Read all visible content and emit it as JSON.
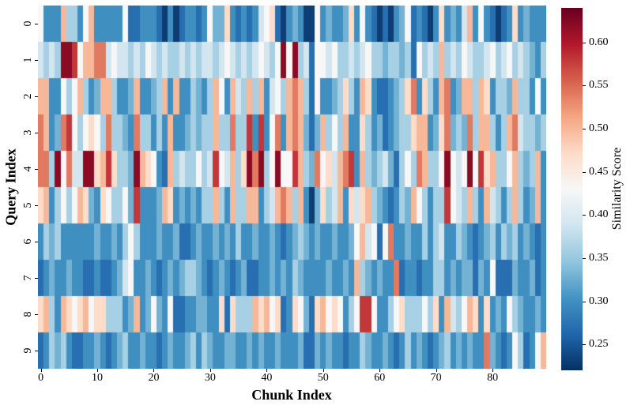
{
  "figure": {
    "background": "#ffffff",
    "x_ticks": [
      0,
      10,
      20,
      30,
      40,
      50,
      60,
      70,
      80
    ],
    "y_ticks": [
      0,
      1,
      2,
      3,
      4,
      5,
      6,
      7,
      8,
      9
    ],
    "colorbar_ticks": [
      0.6,
      0.55,
      0.5,
      0.45,
      0.4,
      0.35,
      0.3,
      0.25
    ]
  },
  "chart_data": {
    "type": "heatmap",
    "title": "",
    "xlabel": "Chunk Index",
    "ylabel": "Query Index",
    "colorbar_label": "Similarity Score",
    "n_rows": 10,
    "n_cols": 90,
    "vmin": 0.22,
    "vmax": 0.64,
    "colormap": "RdBu_r",
    "colormap_stops": [
      "#053061",
      "#2166ac",
      "#4393c3",
      "#92c5de",
      "#d1e5f0",
      "#f7f7f7",
      "#fddbc7",
      "#f4a582",
      "#d6604d",
      "#b2182b",
      "#67001f"
    ],
    "values": [
      [
        0.43,
        0.3,
        0.3,
        0.3,
        0.5,
        0.36,
        0.36,
        0.3,
        0.43,
        0.5,
        0.3,
        0.3,
        0.3,
        0.3,
        0.3,
        0.43,
        0.27,
        0.27,
        0.3,
        0.3,
        0.3,
        0.27,
        0.23,
        0.3,
        0.23,
        0.27,
        0.3,
        0.3,
        0.27,
        0.3,
        0.43,
        0.33,
        0.33,
        0.47,
        0.3,
        0.27,
        0.3,
        0.27,
        0.3,
        0.39,
        0.43,
        0.47,
        0.27,
        0.23,
        0.3,
        0.33,
        0.3,
        0.23,
        0.23,
        0.43,
        0.3,
        0.33,
        0.3,
        0.3,
        0.33,
        0.47,
        0.3,
        0.43,
        0.3,
        0.27,
        0.23,
        0.27,
        0.23,
        0.3,
        0.33,
        0.43,
        0.27,
        0.3,
        0.27,
        0.23,
        0.3,
        0.47,
        0.3,
        0.33,
        0.3,
        0.39,
        0.5,
        0.3,
        0.43,
        0.3,
        0.27,
        0.23,
        0.27,
        0.3,
        0.47,
        0.3,
        0.33,
        0.3,
        0.3,
        0.3
      ],
      [
        0.39,
        0.36,
        0.39,
        0.36,
        0.62,
        0.62,
        0.58,
        0.43,
        0.5,
        0.5,
        0.54,
        0.54,
        0.39,
        0.43,
        0.39,
        0.39,
        0.36,
        0.39,
        0.36,
        0.43,
        0.39,
        0.36,
        0.39,
        0.36,
        0.36,
        0.39,
        0.36,
        0.39,
        0.36,
        0.39,
        0.39,
        0.36,
        0.39,
        0.43,
        0.39,
        0.36,
        0.39,
        0.36,
        0.39,
        0.43,
        0.39,
        0.36,
        0.43,
        0.62,
        0.43,
        0.62,
        0.36,
        0.39,
        0.27,
        0.43,
        0.43,
        0.39,
        0.43,
        0.36,
        0.36,
        0.39,
        0.36,
        0.39,
        0.43,
        0.36,
        0.36,
        0.33,
        0.36,
        0.36,
        0.33,
        0.36,
        0.27,
        0.43,
        0.36,
        0.39,
        0.36,
        0.5,
        0.36,
        0.39,
        0.36,
        0.43,
        0.39,
        0.36,
        0.36,
        0.39,
        0.43,
        0.36,
        0.39,
        0.43,
        0.36,
        0.39,
        0.36,
        0.33,
        0.3,
        0.36
      ],
      [
        0.5,
        0.5,
        0.3,
        0.3,
        0.43,
        0.36,
        0.43,
        0.5,
        0.36,
        0.3,
        0.33,
        0.5,
        0.5,
        0.36,
        0.3,
        0.3,
        0.33,
        0.5,
        0.3,
        0.3,
        0.33,
        0.36,
        0.5,
        0.3,
        0.5,
        0.3,
        0.3,
        0.36,
        0.33,
        0.3,
        0.36,
        0.5,
        0.43,
        0.3,
        0.5,
        0.39,
        0.36,
        0.5,
        0.36,
        0.5,
        0.3,
        0.39,
        0.43,
        0.36,
        0.5,
        0.54,
        0.5,
        0.36,
        0.27,
        0.43,
        0.3,
        0.3,
        0.33,
        0.36,
        0.47,
        0.36,
        0.3,
        0.5,
        0.47,
        0.3,
        0.27,
        0.27,
        0.3,
        0.33,
        0.36,
        0.47,
        0.54,
        0.3,
        0.47,
        0.36,
        0.3,
        0.5,
        0.54,
        0.3,
        0.33,
        0.5,
        0.5,
        0.36,
        0.5,
        0.47,
        0.3,
        0.36,
        0.36,
        0.33,
        0.5,
        0.36,
        0.36,
        0.3,
        0.43,
        0.3
      ],
      [
        0.54,
        0.5,
        0.3,
        0.33,
        0.54,
        0.58,
        0.43,
        0.36,
        0.43,
        0.47,
        0.43,
        0.36,
        0.54,
        0.36,
        0.36,
        0.33,
        0.3,
        0.54,
        0.36,
        0.36,
        0.3,
        0.36,
        0.3,
        0.5,
        0.3,
        0.3,
        0.33,
        0.36,
        0.33,
        0.36,
        0.36,
        0.5,
        0.36,
        0.36,
        0.54,
        0.36,
        0.36,
        0.58,
        0.3,
        0.58,
        0.3,
        0.43,
        0.54,
        0.3,
        0.5,
        0.54,
        0.5,
        0.33,
        0.27,
        0.33,
        0.5,
        0.36,
        0.43,
        0.36,
        0.5,
        0.3,
        0.3,
        0.47,
        0.36,
        0.3,
        0.33,
        0.27,
        0.3,
        0.33,
        0.36,
        0.36,
        0.47,
        0.5,
        0.5,
        0.3,
        0.33,
        0.47,
        0.54,
        0.33,
        0.36,
        0.33,
        0.54,
        0.36,
        0.5,
        0.5,
        0.36,
        0.3,
        0.36,
        0.5,
        0.54,
        0.39,
        0.36,
        0.36,
        0.33,
        0.36
      ],
      [
        0.54,
        0.54,
        0.36,
        0.62,
        0.43,
        0.54,
        0.39,
        0.39,
        0.62,
        0.62,
        0.47,
        0.5,
        0.58,
        0.47,
        0.36,
        0.36,
        0.33,
        0.62,
        0.5,
        0.47,
        0.43,
        0.3,
        0.27,
        0.5,
        0.36,
        0.39,
        0.36,
        0.36,
        0.43,
        0.36,
        0.39,
        0.58,
        0.43,
        0.39,
        0.5,
        0.36,
        0.47,
        0.62,
        0.54,
        0.62,
        0.36,
        0.43,
        0.62,
        0.43,
        0.43,
        0.58,
        0.5,
        0.36,
        0.33,
        0.54,
        0.43,
        0.47,
        0.39,
        0.5,
        0.54,
        0.58,
        0.3,
        0.5,
        0.36,
        0.33,
        0.36,
        0.39,
        0.33,
        0.27,
        0.36,
        0.43,
        0.36,
        0.54,
        0.5,
        0.36,
        0.36,
        0.43,
        0.62,
        0.43,
        0.39,
        0.43,
        0.62,
        0.43,
        0.58,
        0.47,
        0.5,
        0.36,
        0.36,
        0.43,
        0.5,
        0.36,
        0.33,
        0.36,
        0.5,
        0.3
      ],
      [
        0.47,
        0.5,
        0.3,
        0.36,
        0.43,
        0.36,
        0.43,
        0.5,
        0.47,
        0.33,
        0.3,
        0.47,
        0.43,
        0.36,
        0.36,
        0.43,
        0.33,
        0.58,
        0.3,
        0.3,
        0.3,
        0.33,
        0.5,
        0.47,
        0.3,
        0.33,
        0.3,
        0.33,
        0.3,
        0.36,
        0.36,
        0.5,
        0.36,
        0.3,
        0.5,
        0.36,
        0.36,
        0.5,
        0.5,
        0.3,
        0.36,
        0.39,
        0.5,
        0.54,
        0.5,
        0.36,
        0.5,
        0.3,
        0.23,
        0.33,
        0.47,
        0.36,
        0.39,
        0.5,
        0.3,
        0.47,
        0.39,
        0.47,
        0.5,
        0.36,
        0.33,
        0.3,
        0.27,
        0.3,
        0.36,
        0.33,
        0.5,
        0.43,
        0.36,
        0.3,
        0.36,
        0.36,
        0.58,
        0.43,
        0.39,
        0.36,
        0.5,
        0.36,
        0.3,
        0.5,
        0.39,
        0.36,
        0.3,
        0.36,
        0.5,
        0.36,
        0.3,
        0.33,
        0.5,
        0.3
      ],
      [
        0.3,
        0.36,
        0.33,
        0.36,
        0.3,
        0.3,
        0.3,
        0.3,
        0.3,
        0.3,
        0.33,
        0.3,
        0.3,
        0.33,
        0.3,
        0.36,
        0.43,
        0.36,
        0.3,
        0.3,
        0.3,
        0.33,
        0.3,
        0.3,
        0.33,
        0.27,
        0.27,
        0.3,
        0.33,
        0.3,
        0.3,
        0.33,
        0.3,
        0.33,
        0.3,
        0.36,
        0.3,
        0.3,
        0.33,
        0.3,
        0.3,
        0.33,
        0.3,
        0.27,
        0.3,
        0.33,
        0.36,
        0.33,
        0.3,
        0.33,
        0.3,
        0.3,
        0.33,
        0.3,
        0.3,
        0.33,
        0.43,
        0.5,
        0.39,
        0.43,
        0.27,
        0.43,
        0.54,
        0.3,
        0.3,
        0.33,
        0.3,
        0.3,
        0.36,
        0.3,
        0.36,
        0.39,
        0.3,
        0.3,
        0.36,
        0.33,
        0.3,
        0.27,
        0.3,
        0.33,
        0.36,
        0.3,
        0.36,
        0.33,
        0.36,
        0.3,
        0.33,
        0.3,
        0.27,
        0.3
      ],
      [
        0.27,
        0.3,
        0.33,
        0.3,
        0.3,
        0.33,
        0.3,
        0.3,
        0.27,
        0.27,
        0.3,
        0.27,
        0.27,
        0.3,
        0.33,
        0.39,
        0.43,
        0.3,
        0.3,
        0.33,
        0.3,
        0.27,
        0.3,
        0.33,
        0.3,
        0.33,
        0.36,
        0.36,
        0.33,
        0.3,
        0.27,
        0.3,
        0.33,
        0.3,
        0.27,
        0.3,
        0.33,
        0.27,
        0.27,
        0.3,
        0.3,
        0.33,
        0.3,
        0.33,
        0.3,
        0.36,
        0.33,
        0.3,
        0.3,
        0.3,
        0.3,
        0.33,
        0.3,
        0.3,
        0.33,
        0.3,
        0.5,
        0.36,
        0.33,
        0.3,
        0.33,
        0.3,
        0.3,
        0.54,
        0.27,
        0.3,
        0.3,
        0.27,
        0.3,
        0.3,
        0.36,
        0.36,
        0.3,
        0.33,
        0.3,
        0.33,
        0.33,
        0.27,
        0.33,
        0.3,
        0.43,
        0.27,
        0.27,
        0.27,
        0.33,
        0.3,
        0.3,
        0.33,
        0.27,
        0.3
      ],
      [
        0.47,
        0.5,
        0.36,
        0.3,
        0.5,
        0.47,
        0.43,
        0.47,
        0.5,
        0.43,
        0.47,
        0.47,
        0.36,
        0.36,
        0.36,
        0.3,
        0.33,
        0.5,
        0.3,
        0.33,
        0.43,
        0.33,
        0.3,
        0.43,
        0.27,
        0.27,
        0.3,
        0.3,
        0.33,
        0.33,
        0.3,
        0.3,
        0.47,
        0.27,
        0.47,
        0.36,
        0.36,
        0.36,
        0.5,
        0.47,
        0.5,
        0.43,
        0.47,
        0.27,
        0.3,
        0.47,
        0.43,
        0.33,
        0.27,
        0.47,
        0.5,
        0.43,
        0.47,
        0.43,
        0.3,
        0.36,
        0.43,
        0.58,
        0.58,
        0.43,
        0.3,
        0.3,
        0.36,
        0.43,
        0.47,
        0.36,
        0.36,
        0.36,
        0.43,
        0.36,
        0.47,
        0.3,
        0.5,
        0.39,
        0.36,
        0.43,
        0.5,
        0.47,
        0.3,
        0.47,
        0.3,
        0.33,
        0.3,
        0.43,
        0.36,
        0.33,
        0.3,
        0.3,
        0.33,
        0.3
      ],
      [
        0.27,
        0.3,
        0.36,
        0.33,
        0.36,
        0.3,
        0.27,
        0.27,
        0.3,
        0.3,
        0.33,
        0.3,
        0.27,
        0.3,
        0.33,
        0.36,
        0.3,
        0.3,
        0.33,
        0.3,
        0.3,
        0.27,
        0.3,
        0.33,
        0.3,
        0.3,
        0.33,
        0.36,
        0.3,
        0.36,
        0.33,
        0.3,
        0.3,
        0.33,
        0.33,
        0.3,
        0.3,
        0.33,
        0.3,
        0.33,
        0.3,
        0.3,
        0.33,
        0.3,
        0.3,
        0.3,
        0.33,
        0.27,
        0.27,
        0.33,
        0.3,
        0.33,
        0.3,
        0.3,
        0.27,
        0.3,
        0.3,
        0.36,
        0.33,
        0.3,
        0.3,
        0.33,
        0.3,
        0.27,
        0.3,
        0.36,
        0.3,
        0.33,
        0.3,
        0.27,
        0.3,
        0.33,
        0.36,
        0.3,
        0.33,
        0.3,
        0.33,
        0.3,
        0.3,
        0.54,
        0.33,
        0.3,
        0.27,
        0.3,
        0.43,
        0.36,
        0.27,
        0.3,
        0.43,
        0.5
      ]
    ]
  }
}
